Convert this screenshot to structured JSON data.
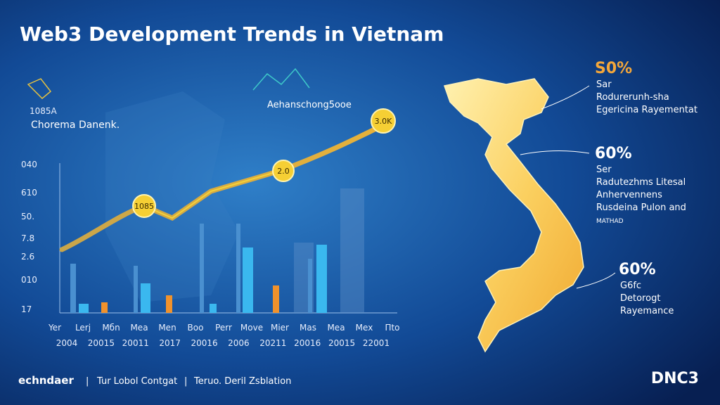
{
  "header": {
    "title": "Web3 Development Trends in Vietnam"
  },
  "chart": {
    "corner_labels": [
      "1085A",
      "Chorema Danenk."
    ],
    "series_label": "Aehanschong5ooe",
    "point_labels": [
      "1085",
      "2.0",
      "3.0K"
    ],
    "y_labels": [
      "040",
      "610",
      "50.",
      "7.8",
      "2.6",
      "010",
      "17"
    ],
    "x_labels_top": [
      "Yer",
      "Lerj",
      "Mбn",
      "Mea",
      "Mеn",
      "Bоо",
      "Perr",
      "Move",
      "Mier",
      "Mas",
      "Mea",
      "Mex",
      "Πtо"
    ],
    "x_labels_bottom": [
      "2004",
      "20015",
      "20011",
      "2017",
      "20016",
      "2006",
      "20211",
      "20016",
      "20015",
      "22001"
    ]
  },
  "callouts": [
    {
      "value": "S0%",
      "lines": [
        "Sar",
        "Rodurerunh-sha",
        "Egericina Rayementat"
      ]
    },
    {
      "value": "60%",
      "lines": [
        "Ser",
        "Radutezhms Litesal",
        "Anhervennens",
        "Rusdeina Pulon and",
        "MATHAD"
      ]
    },
    {
      "value": "60%",
      "lines": [
        "G6fc",
        "Detorogt",
        "Rayemance"
      ]
    }
  ],
  "footer": {
    "items": [
      "echndaer",
      "Tur Lobol Contgat",
      "Teruo. Deril Zsblation"
    ],
    "logo": "DNC3"
  }
}
